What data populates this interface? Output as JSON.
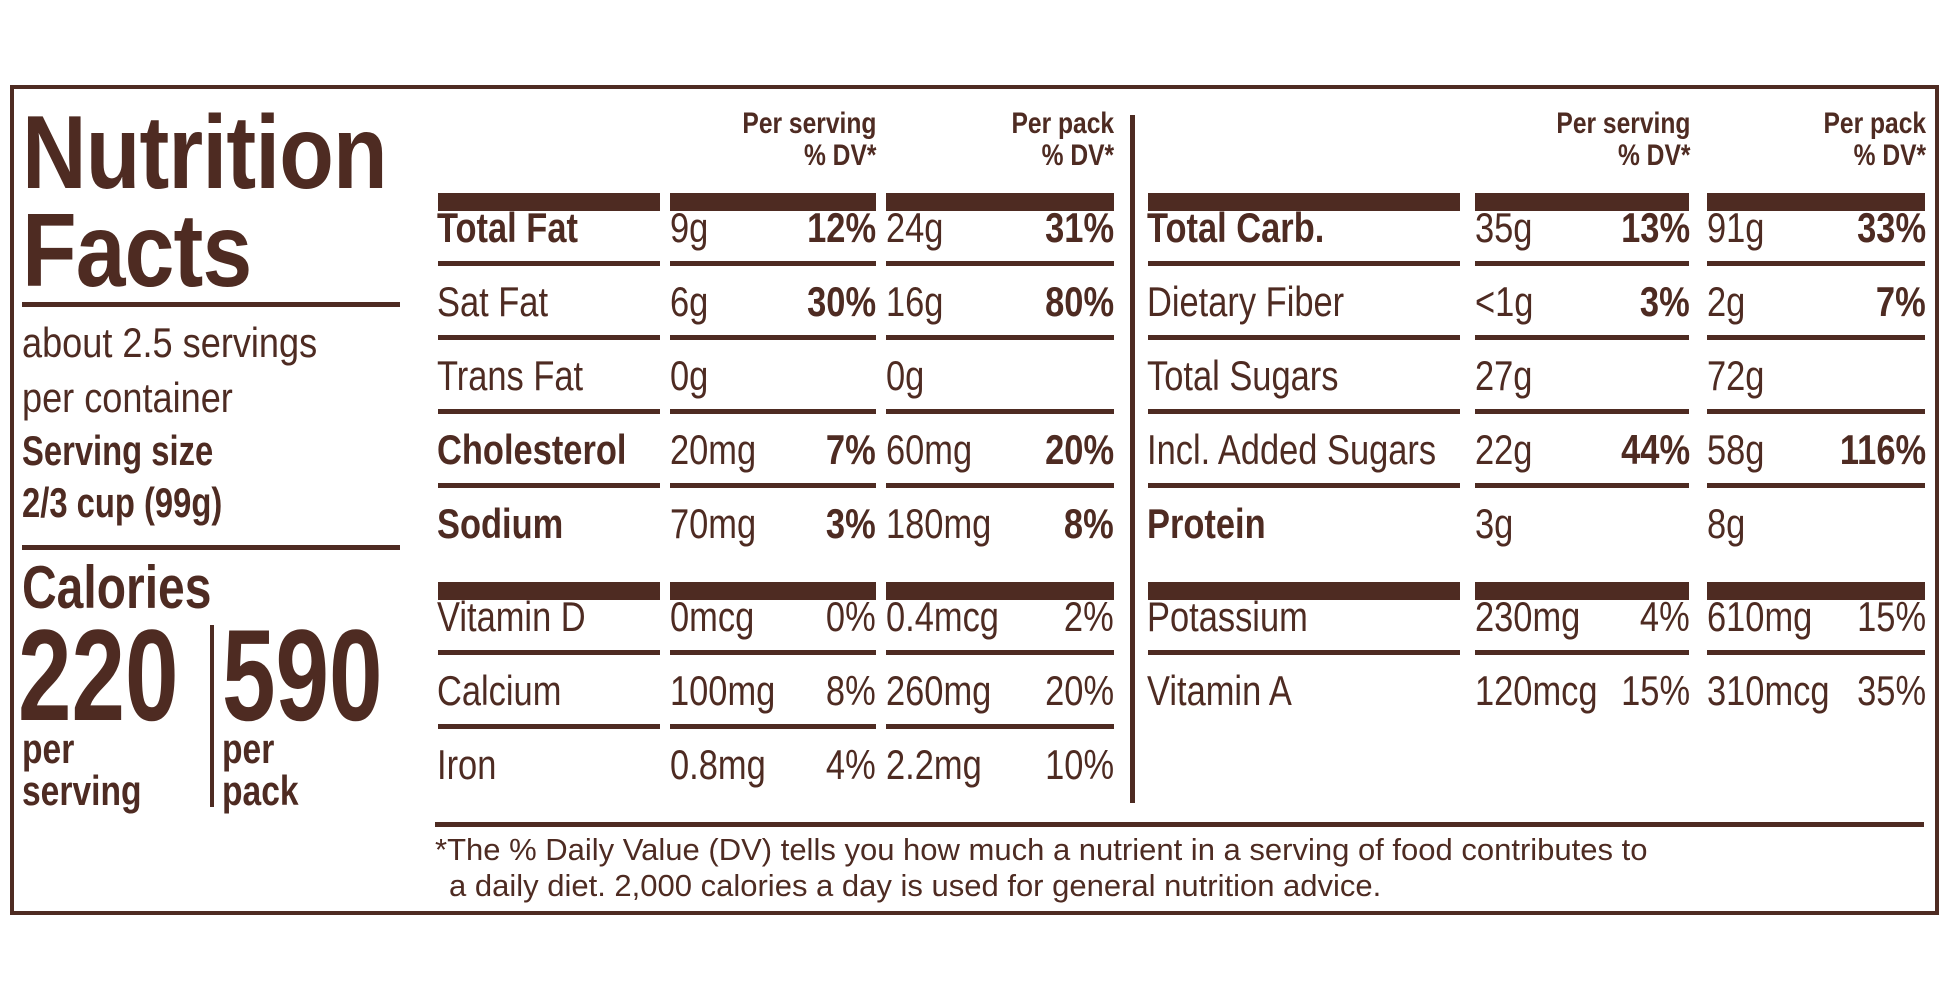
{
  "title_line1": "Nutrition",
  "title_line2": "Facts",
  "servings": {
    "line1": "about 2.5 servings",
    "line2": "per container",
    "size_label": "Serving size",
    "size_value": "2/3 cup (99g)"
  },
  "calories": {
    "label": "Calories",
    "per_serving": "220",
    "per_serving_label1": "per",
    "per_serving_label2": "serving",
    "per_pack": "590",
    "per_pack_label1": "per",
    "per_pack_label2": "pack"
  },
  "headers": {
    "per_serving_1": "Per serving",
    "per_serving_2": "% DV*",
    "per_pack_1": "Per pack",
    "per_pack_2": "% DV*"
  },
  "left_rows": [
    {
      "name": "Total Fat",
      "sv": "9g",
      "sdv": "12%",
      "pv": "24g",
      "pdv": "31%"
    },
    {
      "name": "Sat Fat",
      "sv": "6g",
      "sdv": "30%",
      "pv": "16g",
      "pdv": "80%"
    },
    {
      "name": "Trans Fat",
      "sv": "0g",
      "sdv": "",
      "pv": "0g",
      "pdv": ""
    },
    {
      "name": "Cholesterol",
      "sv": "20mg",
      "sdv": "7%",
      "pv": "60mg",
      "pdv": "20%"
    },
    {
      "name": "Sodium",
      "sv": "70mg",
      "sdv": "3%",
      "pv": "180mg",
      "pdv": "8%"
    },
    {
      "name": "Vitamin D",
      "sv": "0mcg",
      "sdv": "0%",
      "pv": "0.4mcg",
      "pdv": "2%"
    },
    {
      "name": "Calcium",
      "sv": "100mg",
      "sdv": "8%",
      "pv": "260mg",
      "pdv": "20%"
    },
    {
      "name": "Iron",
      "sv": "0.8mg",
      "sdv": "4%",
      "pv": "2.2mg",
      "pdv": "10%"
    }
  ],
  "right_rows": [
    {
      "name": "Total Carb.",
      "sv": "35g",
      "sdv": "13%",
      "pv": "91g",
      "pdv": "33%"
    },
    {
      "name": "Dietary Fiber",
      "sv": "<1g",
      "sdv": "3%",
      "pv": "2g",
      "pdv": "7%"
    },
    {
      "name": "Total Sugars",
      "sv": "27g",
      "sdv": "",
      "pv": "72g",
      "pdv": ""
    },
    {
      "name": "Incl. Added Sugars",
      "sv": "22g",
      "sdv": "44%",
      "pv": "58g",
      "pdv": "116%"
    },
    {
      "name": "Protein",
      "sv": "3g",
      "sdv": "",
      "pv": "8g",
      "pdv": ""
    },
    {
      "name": "Potassium",
      "sv": "230mg",
      "sdv": "4%",
      "pv": "610mg",
      "pdv": "15%"
    },
    {
      "name": "Vitamin A",
      "sv": "120mcg",
      "sdv": "15%",
      "pv": "310mcg",
      "pdv": "35%"
    }
  ],
  "footnote": {
    "line1": "*The % Daily Value (DV) tells you how much a nutrient in a serving of food contributes to",
    "line2": "a daily diet. 2,000 calories a day is used for general nutrition advice."
  },
  "colors": {
    "ink": "#4e2b22",
    "background": "#ffffff"
  }
}
